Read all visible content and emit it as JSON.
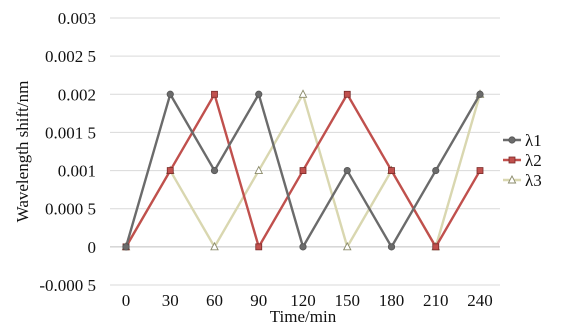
{
  "chart_data": {
    "type": "line",
    "title": "",
    "xlabel": "Time/min",
    "ylabel": "Wavelength shift/nm",
    "x": [
      0,
      30,
      60,
      90,
      120,
      150,
      180,
      210,
      240
    ],
    "x_tick_labels": [
      "0",
      "30",
      "60",
      "90",
      "120",
      "150",
      "180",
      "210",
      "240"
    ],
    "ylim": [
      -0.0005,
      0.003
    ],
    "y_ticks": [
      -0.0005,
      0,
      0.0005,
      0.001,
      0.0015,
      0.002,
      0.0025,
      0.003
    ],
    "y_tick_labels": [
      "-0.000 5",
      "0",
      "0.000 5",
      "0.001",
      "0.001 5",
      "0.002",
      "0.002 5",
      "0.003"
    ],
    "grid": true,
    "legend_position": "right",
    "series": [
      {
        "name": "λ1",
        "marker": "circle",
        "color": "#6b6b6b",
        "values": [
          0,
          0.002,
          0.001,
          0.002,
          0,
          0.001,
          0,
          0.001,
          0.002
        ]
      },
      {
        "name": "λ2",
        "marker": "square",
        "color": "#c0504d",
        "values": [
          0,
          0.001,
          0.002,
          0,
          0.001,
          0.002,
          0.001,
          0,
          0.001
        ]
      },
      {
        "name": "λ3",
        "marker": "triangle",
        "color": "#d9d7b0",
        "values": [
          0,
          0.001,
          0,
          0.001,
          0.002,
          0,
          0.001,
          0,
          0.002
        ]
      }
    ]
  }
}
